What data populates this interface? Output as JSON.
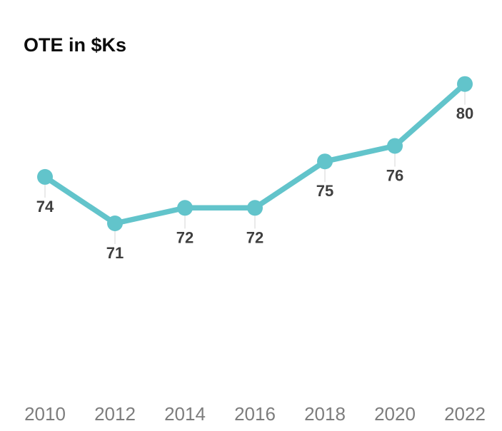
{
  "chart_data": {
    "type": "line",
    "title": "OTE in $Ks",
    "categories": [
      "2010",
      "2012",
      "2014",
      "2016",
      "2018",
      "2020",
      "2022"
    ],
    "values": [
      74,
      71,
      72,
      72,
      75,
      76,
      80
    ],
    "data_labels": [
      "74",
      "71",
      "72",
      "72",
      "75",
      "76",
      "80"
    ],
    "series_name": "OTE",
    "xlabel": "",
    "ylabel": "",
    "ylim": [
      68,
      82
    ],
    "grid": false,
    "legend": false,
    "y_axis_visible": false,
    "colors": {
      "line": "#62c4cb",
      "marker": "#62c4cb",
      "value_label": "#3f3f3f",
      "axis_label": "#7d7d7d",
      "leader_line": "#e2e2e2",
      "title": "#0c0c0c",
      "background": "#ffffff"
    }
  }
}
